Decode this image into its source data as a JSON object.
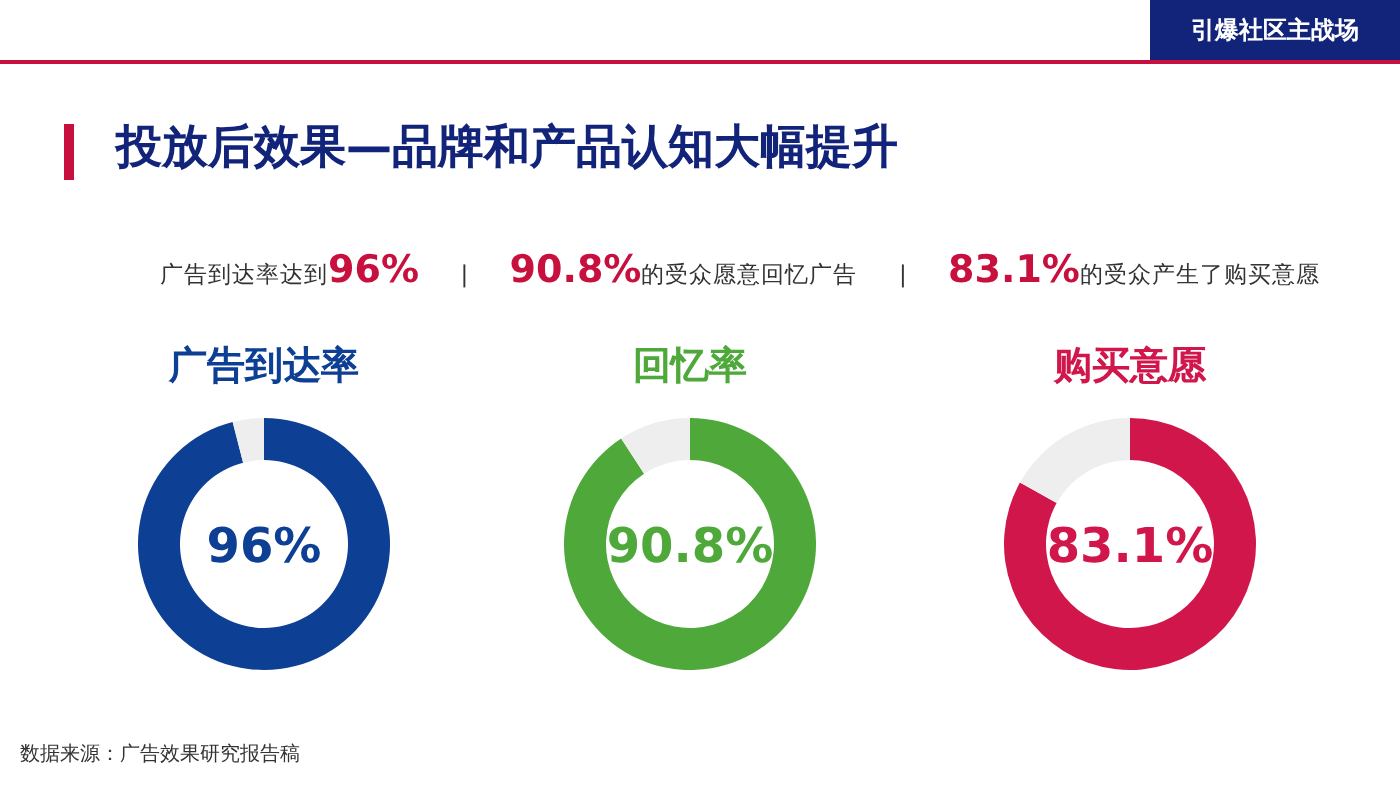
{
  "chart_data": [
    {
      "type": "other",
      "title": "投放后效果—品牌和产品认知大幅提升",
      "annotations": [
        "引爆社区主战场",
        "广告到达率达到96%",
        "|",
        "90.8%的受众愿意回忆广告",
        "|",
        "83.1%的受众产生了购买意愿",
        "数据来源：广告效果研究报告稿"
      ]
    },
    {
      "type": "donut",
      "title": "广告到达率",
      "categories": [
        null,
        null
      ],
      "values": [
        96,
        4
      ],
      "colors": [
        "#0d3f95",
        "#eeeeee"
      ],
      "value_labels": [
        "96%",
        null
      ]
    },
    {
      "type": "donut",
      "title": "回忆率",
      "categories": [
        null,
        null
      ],
      "values": [
        90.8,
        9.2
      ],
      "colors": [
        "#4ea83a",
        "#eeeeee"
      ],
      "value_labels": [
        "90.8%",
        null
      ]
    },
    {
      "type": "donut",
      "title": "购买意愿",
      "categories": [
        null,
        null
      ],
      "values": [
        83.1,
        16.9
      ],
      "colors": [
        "#d0164a",
        "#eeeeee"
      ],
      "value_labels": [
        "83.1%",
        null
      ]
    }
  ]
}
